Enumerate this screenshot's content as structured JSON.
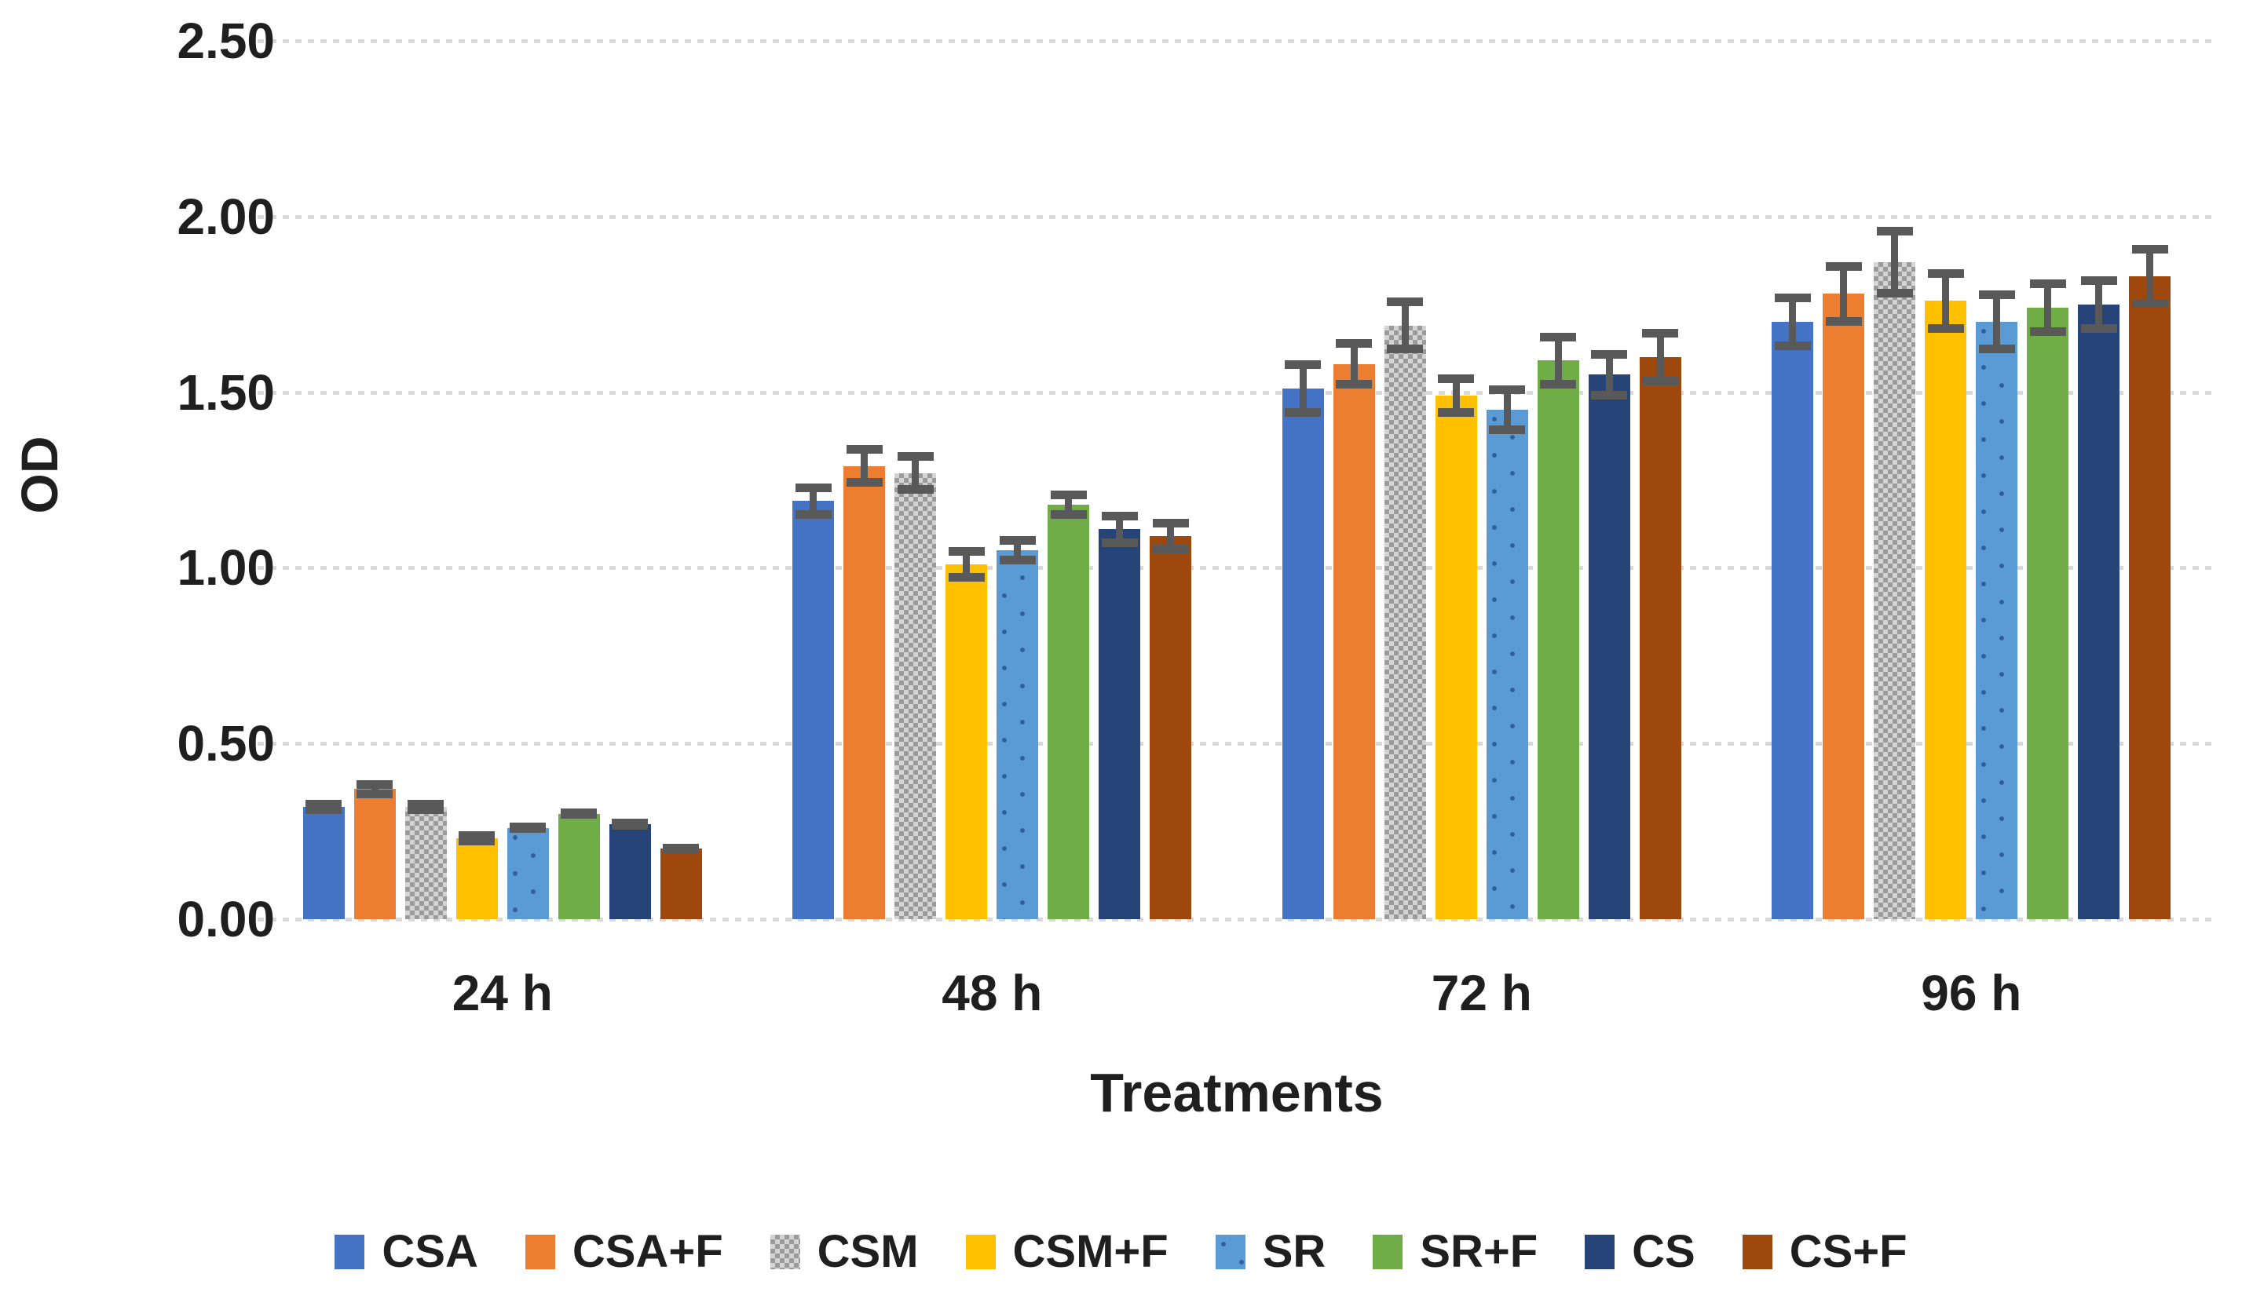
{
  "chart_data": {
    "type": "bar",
    "title": "",
    "xlabel": "Treatments",
    "ylabel": "OD",
    "ylim": [
      0,
      2.5
    ],
    "ytick_step": 0.5,
    "ytick_labels": [
      "0.00",
      "0.50",
      "1.00",
      "1.50",
      "2.00",
      "2.50"
    ],
    "categories": [
      "24 h",
      "48 h",
      "72 h",
      "96 h"
    ],
    "series": [
      {
        "name": "CSA",
        "color": "#4472C4",
        "pattern": "solid",
        "values": [
          0.32,
          1.19,
          1.51,
          1.7
        ],
        "errors": [
          0.02,
          0.05,
          0.08,
          0.08
        ]
      },
      {
        "name": "CSA+F",
        "color": "#ED7D31",
        "pattern": "solid",
        "values": [
          0.37,
          1.29,
          1.58,
          1.78
        ],
        "errors": [
          0.025,
          0.06,
          0.07,
          0.09
        ]
      },
      {
        "name": "CSM",
        "color": "#A6A6A6",
        "pattern": "checker",
        "values": [
          0.32,
          1.27,
          1.69,
          1.87
        ],
        "errors": [
          0.02,
          0.06,
          0.08,
          0.1
        ]
      },
      {
        "name": "CSM+F",
        "color": "#FFC000",
        "pattern": "solid",
        "values": [
          0.23,
          1.01,
          1.49,
          1.76
        ],
        "errors": [
          0.02,
          0.05,
          0.06,
          0.09
        ]
      },
      {
        "name": "SR",
        "color": "#5B9BD5",
        "pattern": "dots",
        "values": [
          0.26,
          1.05,
          1.45,
          1.7
        ],
        "errors": [
          0.015,
          0.04,
          0.07,
          0.09
        ]
      },
      {
        "name": "SR+F",
        "color": "#70AD47",
        "pattern": "solid",
        "values": [
          0.3,
          1.18,
          1.59,
          1.74
        ],
        "errors": [
          0.015,
          0.04,
          0.08,
          0.08
        ]
      },
      {
        "name": "CS",
        "color": "#264478",
        "pattern": "solid",
        "values": [
          0.27,
          1.11,
          1.55,
          1.75
        ],
        "errors": [
          0.015,
          0.05,
          0.07,
          0.08
        ]
      },
      {
        "name": "CS+F",
        "color": "#9E480E",
        "pattern": "solid",
        "values": [
          0.2,
          1.09,
          1.6,
          1.83
        ],
        "errors": [
          0.015,
          0.05,
          0.08,
          0.09
        ]
      }
    ],
    "grid": true,
    "gridline_color": "#D9D9D9",
    "error_bar_color": "#595959",
    "background_color": "#FFFFFF",
    "legend_position": "bottom"
  }
}
